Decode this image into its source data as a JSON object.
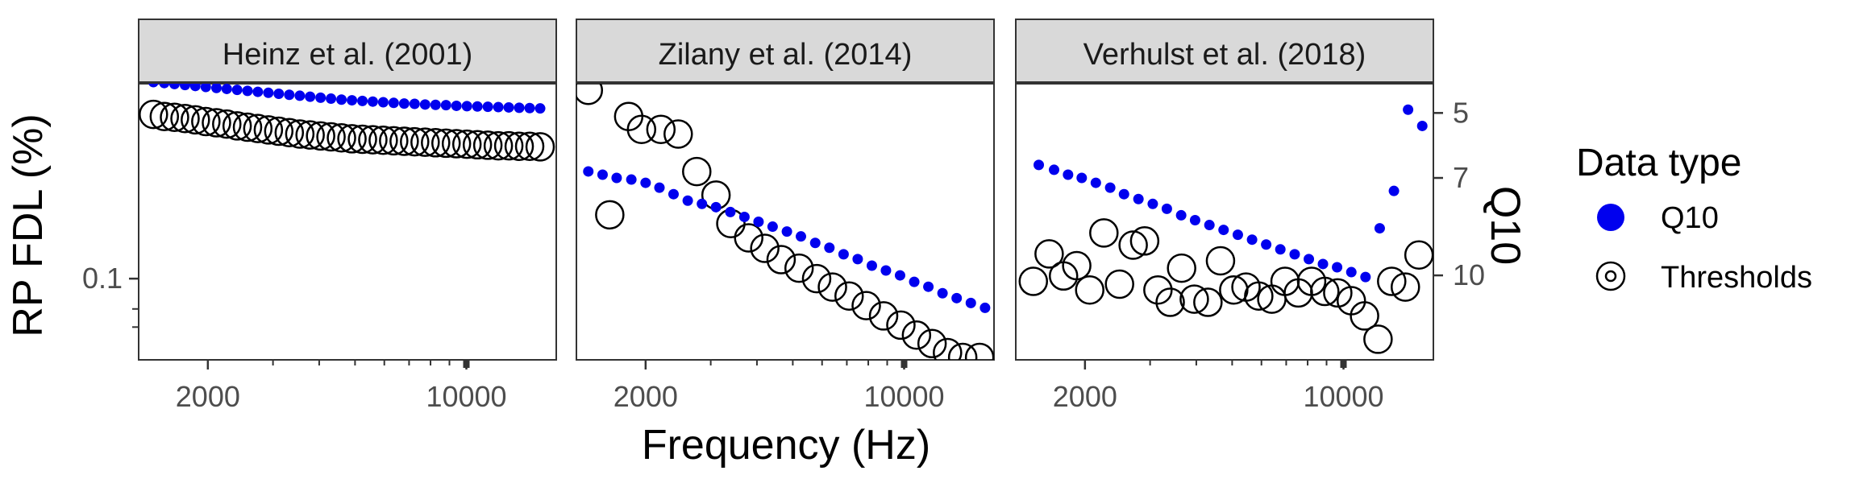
{
  "chart_data": {
    "type": "scatter",
    "x_axis": {
      "label": "Frequency (Hz)",
      "scale": "log",
      "range": [
        1300,
        17500
      ],
      "tick_labels": [
        "2000",
        "10000"
      ],
      "tick_values": [
        2000,
        10000
      ],
      "minor_ticks": [
        3000,
        4000,
        5000,
        6000,
        7000,
        8000,
        9000
      ]
    },
    "y_axis_left": {
      "label": "RP FDL (%)",
      "scale": "log",
      "range": [
        0.055,
        0.42
      ],
      "tick_labels": [
        "0.1"
      ],
      "tick_values": [
        0.1
      ],
      "minor_ticks": [
        0.08,
        0.07
      ]
    },
    "y_axis_right": {
      "label": "Q10",
      "range_top_to_bottom": [
        4.1,
        12.6
      ],
      "tick_labels": [
        "5",
        "7",
        "10"
      ],
      "tick_values": [
        5,
        7,
        10
      ]
    },
    "legend": {
      "title": "Data type",
      "placement": "right",
      "entries": [
        {
          "label": "Q10",
          "marker": "filled-circle",
          "color": "#0000ee"
        },
        {
          "label": "Thresholds",
          "marker": "open-circle",
          "color": "#000000"
        }
      ]
    },
    "colors": {
      "q10": "#0000ee",
      "thresholds": "#000000",
      "strip_bg": "#d9d9d9",
      "panel_border": "#333333"
    },
    "panels": [
      {
        "title": "Heinz et al. (2001)",
        "thresholds": {
          "x": [
            1425,
            1525,
            1625,
            1735,
            1850,
            1975,
            2110,
            2250,
            2400,
            2560,
            2730,
            2915,
            3110,
            3320,
            3545,
            3780,
            4035,
            4305,
            4595,
            4905,
            5235,
            5585,
            5960,
            6360,
            6790,
            7245,
            7735,
            8255,
            8810,
            9400,
            10035,
            10710,
            11430,
            12200,
            13020,
            13895,
            14830,
            15830
          ],
          "y": [
            0.335,
            0.33,
            0.328,
            0.325,
            0.322,
            0.318,
            0.315,
            0.312,
            0.308,
            0.305,
            0.302,
            0.299,
            0.296,
            0.293,
            0.29,
            0.288,
            0.286,
            0.284,
            0.282,
            0.28,
            0.279,
            0.278,
            0.277,
            0.276,
            0.275,
            0.274,
            0.273,
            0.272,
            0.271,
            0.27,
            0.269,
            0.268,
            0.267,
            0.266,
            0.266,
            0.265,
            0.265,
            0.264
          ]
        },
        "q10": {
          "x": [
            1425,
            1525,
            1625,
            1735,
            1850,
            1975,
            2110,
            2250,
            2400,
            2560,
            2730,
            2915,
            3110,
            3320,
            3545,
            3780,
            4035,
            4305,
            4595,
            4905,
            5235,
            5585,
            5960,
            6360,
            6790,
            7245,
            7735,
            8255,
            8810,
            9400,
            10035,
            10710,
            11430,
            12200,
            13020,
            13895,
            14830,
            15830
          ],
          "y": [
            4.05,
            4.08,
            4.11,
            4.14,
            4.17,
            4.2,
            4.23,
            4.26,
            4.29,
            4.32,
            4.35,
            4.38,
            4.41,
            4.44,
            4.47,
            4.5,
            4.53,
            4.56,
            4.59,
            4.61,
            4.63,
            4.65,
            4.67,
            4.69,
            4.71,
            4.72,
            4.74,
            4.75,
            4.76,
            4.78,
            4.79,
            4.8,
            4.81,
            4.82,
            4.83,
            4.84,
            4.85,
            4.86
          ]
        }
      },
      {
        "title": "Zilany et al. (2014)",
        "thresholds": {
          "x": [
            1400,
            1600,
            1800,
            1950,
            2200,
            2450,
            2750,
            3100,
            3400,
            3800,
            4200,
            4650,
            5200,
            5800,
            6400,
            7100,
            7900,
            8800,
            9800,
            10800,
            11900,
            13100,
            14400,
            16000
          ],
          "y": [
            0.4,
            0.16,
            0.33,
            0.3,
            0.3,
            0.29,
            0.22,
            0.185,
            0.15,
            0.135,
            0.125,
            0.115,
            0.108,
            0.1,
            0.094,
            0.088,
            0.082,
            0.076,
            0.071,
            0.066,
            0.062,
            0.058,
            0.056,
            0.056
          ]
        },
        "q10": {
          "x": [
            1400,
            1530,
            1670,
            1830,
            2000,
            2180,
            2380,
            2600,
            2840,
            3100,
            3390,
            3700,
            4040,
            4410,
            4820,
            5260,
            5750,
            6280,
            6860,
            7490,
            8180,
            8930,
            9750,
            10650,
            11630,
            12700,
            13870,
            15150,
            16550
          ],
          "y": [
            6.8,
            6.9,
            7.0,
            7.05,
            7.15,
            7.3,
            7.5,
            7.7,
            7.8,
            7.9,
            8.05,
            8.2,
            8.35,
            8.5,
            8.65,
            8.8,
            9.0,
            9.15,
            9.35,
            9.5,
            9.7,
            9.85,
            10.0,
            10.2,
            10.35,
            10.55,
            10.7,
            10.85,
            11.0
          ]
        }
      },
      {
        "title": "Verhulst et al. (2018)",
        "thresholds": {
          "x": [
            1450,
            1600,
            1750,
            1900,
            2060,
            2250,
            2480,
            2700,
            2900,
            3150,
            3400,
            3650,
            3950,
            4300,
            4650,
            5050,
            5450,
            5900,
            6400,
            6950,
            7550,
            8200,
            8900,
            9650,
            10500,
            11400,
            12400,
            13500,
            14700,
            16000
          ],
          "y": [
            0.098,
            0.12,
            0.102,
            0.11,
            0.092,
            0.14,
            0.096,
            0.128,
            0.132,
            0.092,
            0.084,
            0.108,
            0.086,
            0.084,
            0.114,
            0.092,
            0.094,
            0.088,
            0.086,
            0.098,
            0.09,
            0.098,
            0.091,
            0.09,
            0.085,
            0.076,
            0.064,
            0.098,
            0.094,
            0.119
          ]
        },
        "q10": {
          "x": [
            1500,
            1650,
            1800,
            1960,
            2140,
            2340,
            2550,
            2790,
            3050,
            3330,
            3640,
            3970,
            4340,
            4740,
            5180,
            5660,
            6180,
            6750,
            7380,
            8060,
            8800,
            9610,
            10500,
            11470,
            12530,
            13690,
            14950,
            16330
          ],
          "y": [
            6.6,
            6.75,
            6.9,
            7.0,
            7.15,
            7.3,
            7.5,
            7.65,
            7.8,
            7.95,
            8.15,
            8.3,
            8.45,
            8.6,
            8.75,
            8.9,
            9.05,
            9.2,
            9.35,
            9.5,
            9.65,
            9.75,
            9.9,
            10.05,
            8.55,
            7.4,
            4.9,
            5.4
          ]
        }
      }
    ]
  }
}
